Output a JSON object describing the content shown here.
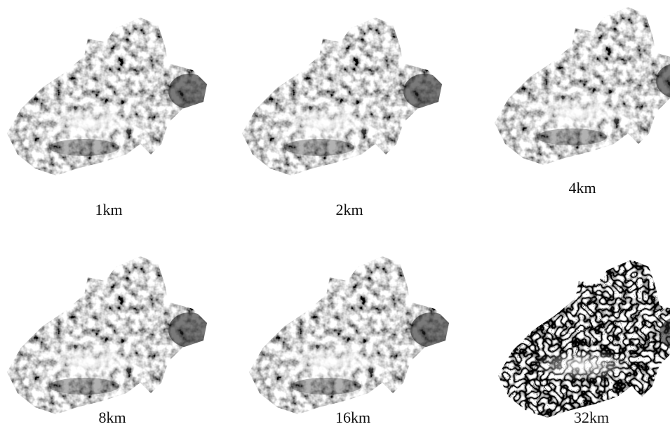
{
  "panels": [
    {
      "label": "1km"
    },
    {
      "label": "2km"
    },
    {
      "label": "4km"
    },
    {
      "label": "8km"
    },
    {
      "label": "16km"
    },
    {
      "label": "32km"
    }
  ]
}
